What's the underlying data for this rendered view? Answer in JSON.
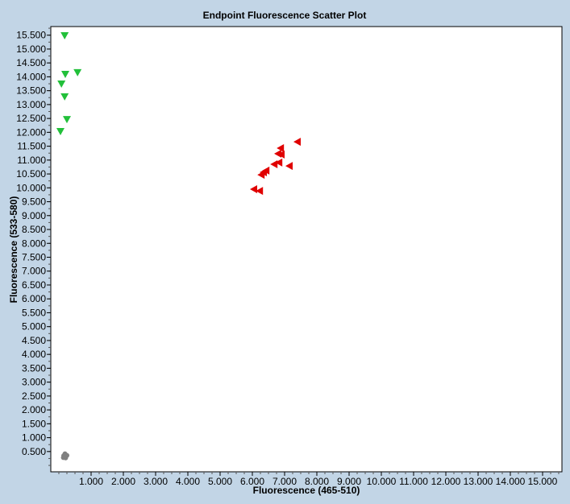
{
  "chart_data": {
    "type": "scatter",
    "title": "Endpoint Fluorescence Scatter Plot",
    "xlabel": "Fluorescence (465-510)",
    "ylabel": "Fluorescence (533-580)",
    "xlim": [
      -0.25,
      15.6
    ],
    "ylim": [
      -0.23,
      15.81
    ],
    "x_ticks": [
      1,
      2,
      3,
      4,
      5,
      6,
      7,
      8,
      9,
      10,
      11,
      12,
      13,
      14,
      15
    ],
    "y_ticks": [
      0.5,
      1,
      1.5,
      2,
      2.5,
      3,
      3.5,
      4,
      4.5,
      5,
      5.5,
      6,
      6.5,
      7,
      7.5,
      8,
      8.5,
      9,
      9.5,
      10,
      10.5,
      11,
      11.5,
      12,
      12.5,
      13,
      13.5,
      14,
      14.5,
      15,
      15.5
    ],
    "tick_format_decimals": 3,
    "grid": false,
    "legend": "none",
    "series": [
      {
        "marker": "triangle-down",
        "color": "#22c03a",
        "points": [
          [
            0.18,
            15.49
          ],
          [
            0.2,
            14.1
          ],
          [
            0.58,
            14.16
          ],
          [
            0.08,
            13.75
          ],
          [
            0.18,
            13.29
          ],
          [
            0.25,
            12.47
          ],
          [
            0.05,
            12.04
          ]
        ]
      },
      {
        "marker": "triangle-left",
        "color": "#e00000",
        "points": [
          [
            7.4,
            11.66
          ],
          [
            6.88,
            11.43
          ],
          [
            6.8,
            11.23
          ],
          [
            6.9,
            11.2
          ],
          [
            6.68,
            10.85
          ],
          [
            6.83,
            10.91
          ],
          [
            7.15,
            10.79
          ],
          [
            6.43,
            10.62
          ],
          [
            6.35,
            10.56
          ],
          [
            6.28,
            10.47
          ],
          [
            6.05,
            9.95
          ],
          [
            6.23,
            9.89
          ]
        ]
      },
      {
        "marker": "circle",
        "color": "#808080",
        "points": [
          [
            0.15,
            0.35
          ],
          [
            0.2,
            0.38
          ],
          [
            0.22,
            0.32
          ],
          [
            0.17,
            0.3
          ],
          [
            0.25,
            0.36
          ],
          [
            0.19,
            0.42
          ],
          [
            0.14,
            0.28
          ],
          [
            0.21,
            0.27
          ]
        ]
      }
    ]
  }
}
